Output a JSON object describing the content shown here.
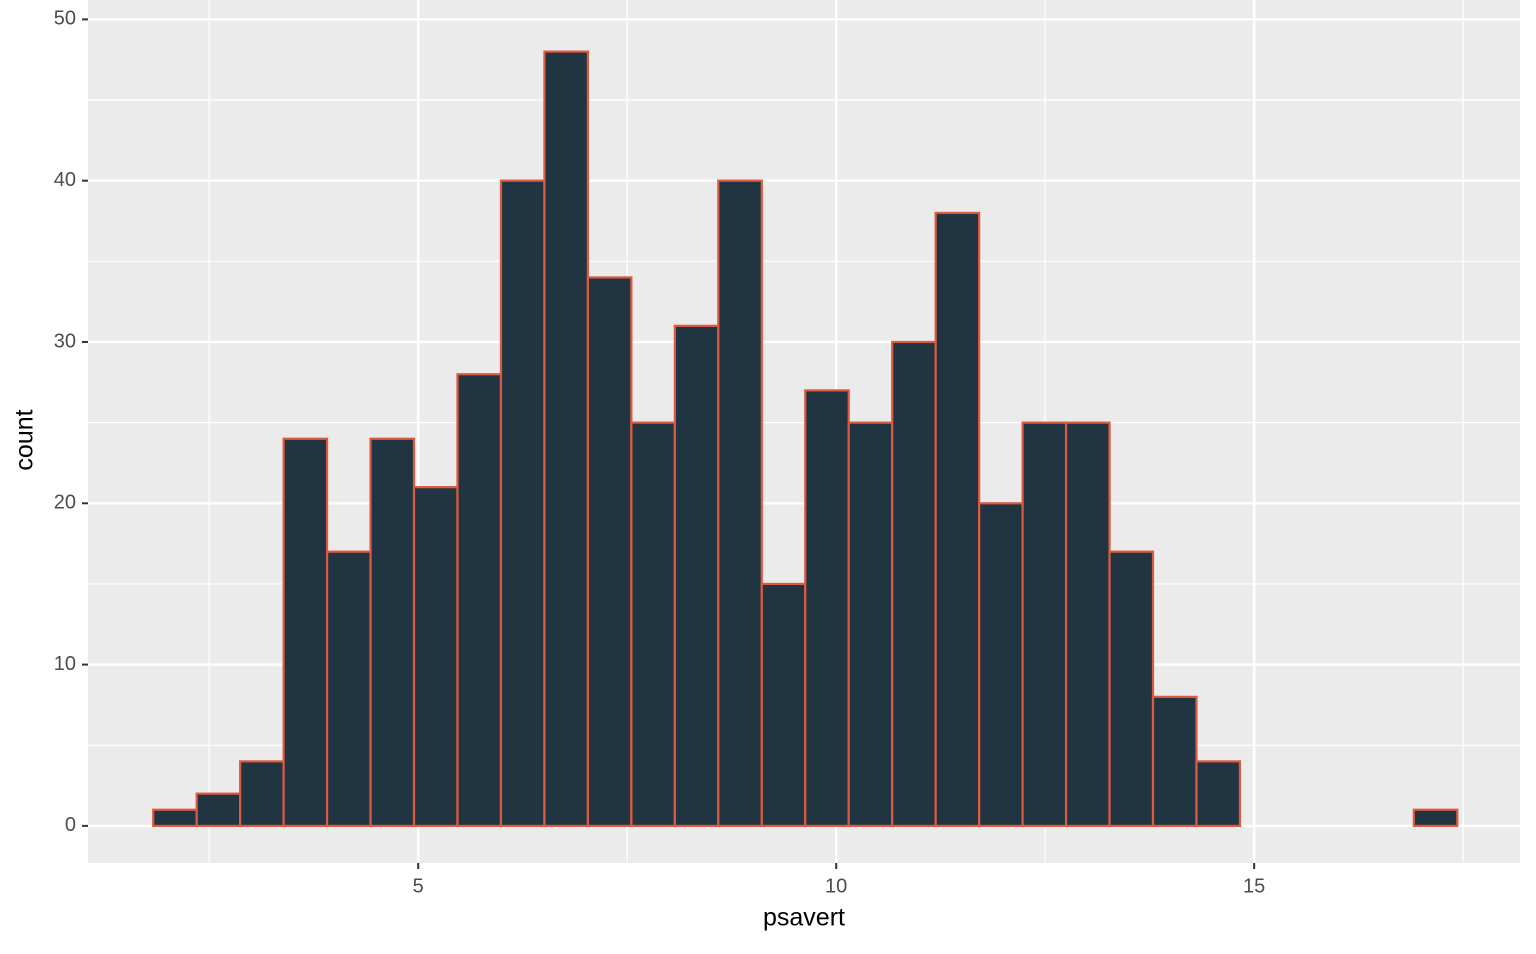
{
  "chart_data": {
    "type": "histogram",
    "x_label": "psavert",
    "y_label": "count",
    "bins": [
      1.83,
      2.35,
      2.87,
      3.39,
      3.91,
      4.43,
      4.95,
      5.47,
      5.99,
      6.51,
      7.03,
      7.55,
      8.07,
      8.59,
      9.11,
      9.63,
      10.15,
      10.67,
      11.19,
      11.71,
      12.23,
      12.75,
      13.27,
      13.79,
      14.31,
      14.83,
      15.35,
      15.87,
      16.39,
      16.91,
      17.43
    ],
    "values": [
      1,
      2,
      4,
      24,
      17,
      24,
      21,
      28,
      40,
      48,
      34,
      25,
      31,
      40,
      15,
      27,
      25,
      30,
      38,
      20,
      25,
      25,
      17,
      8,
      4,
      0,
      0,
      0,
      0,
      1
    ],
    "color": "#203541",
    "edge_color": "#DD5A40",
    "xlim": [
      1.05,
      18.18
    ],
    "ylim": [
      -2.3,
      51.2
    ],
    "xticks": [
      5,
      10,
      15
    ],
    "yticks": [
      0,
      10,
      20,
      30,
      40,
      50
    ],
    "grid": true,
    "minor_grid": true
  }
}
